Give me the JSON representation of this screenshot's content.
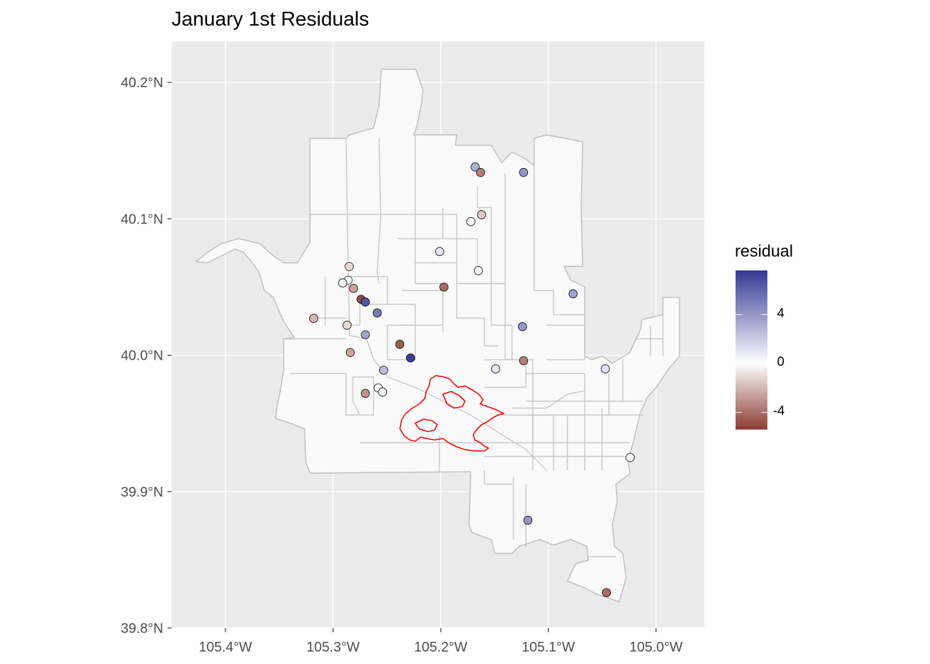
{
  "title": "January 1st Residuals",
  "axes": {
    "x_ticks": [
      {
        "value": -105.4,
        "label": "105.4°W"
      },
      {
        "value": -105.3,
        "label": "105.3°W"
      },
      {
        "value": -105.2,
        "label": "105.2°W"
      },
      {
        "value": -105.1,
        "label": "105.1°W"
      },
      {
        "value": -105.0,
        "label": "105.0°W"
      }
    ],
    "y_ticks": [
      {
        "value": 39.8,
        "label": "39.8°N"
      },
      {
        "value": 39.9,
        "label": "39.9°N"
      },
      {
        "value": 40.0,
        "label": "40.0°N"
      },
      {
        "value": 40.1,
        "label": "40.1°N"
      },
      {
        "value": 40.2,
        "label": "40.2°N"
      }
    ],
    "xlim": [
      -105.45,
      -104.955
    ],
    "ylim": [
      39.8,
      40.23
    ]
  },
  "legend": {
    "title": "residual",
    "breaks": [
      {
        "value": 4,
        "label": "4"
      },
      {
        "value": 0,
        "label": "0"
      },
      {
        "value": -4,
        "label": "-4"
      }
    ],
    "range": [
      -5.4,
      7.6
    ],
    "colors": {
      "low": "#8B3A32",
      "mid": "#FFFFFF",
      "high": "#323A94"
    }
  },
  "colors": {
    "panel": "#EBEBEB",
    "grid": "#FFFFFF",
    "region_fill": "#FAFAFA",
    "region_stroke": "#BFBFBF",
    "fire_perimeter": "#FF0000"
  },
  "chart_data": {
    "type": "scatter",
    "title": "January 1st Residuals",
    "xlabel": "",
    "ylabel": "",
    "color_scale": "residual",
    "points": [
      {
        "lon": -105.168,
        "lat": 40.138,
        "residual": 3.0
      },
      {
        "lon": -105.163,
        "lat": 40.134,
        "residual": -3.5
      },
      {
        "lon": -105.123,
        "lat": 40.134,
        "residual": 4.0
      },
      {
        "lon": -105.172,
        "lat": 40.098,
        "residual": 0.3
      },
      {
        "lon": -105.162,
        "lat": 40.103,
        "residual": -1.5
      },
      {
        "lon": -105.201,
        "lat": 40.076,
        "residual": 1.0
      },
      {
        "lon": -105.165,
        "lat": 40.062,
        "residual": 0.2
      },
      {
        "lon": -105.285,
        "lat": 40.065,
        "residual": -1.0
      },
      {
        "lon": -105.286,
        "lat": 40.055,
        "residual": 0.1
      },
      {
        "lon": -105.291,
        "lat": 40.053,
        "residual": 0.3
      },
      {
        "lon": -105.281,
        "lat": 40.049,
        "residual": -2.5
      },
      {
        "lon": -105.197,
        "lat": 40.05,
        "residual": -4.0
      },
      {
        "lon": -105.077,
        "lat": 40.045,
        "residual": 3.5
      },
      {
        "lon": -105.274,
        "lat": 40.041,
        "residual": -5.0
      },
      {
        "lon": -105.27,
        "lat": 40.039,
        "residual": 6.5
      },
      {
        "lon": -105.259,
        "lat": 40.031,
        "residual": 5.0
      },
      {
        "lon": -105.318,
        "lat": 40.027,
        "residual": -2.0
      },
      {
        "lon": -105.287,
        "lat": 40.022,
        "residual": -1.0
      },
      {
        "lon": -105.124,
        "lat": 40.021,
        "residual": 4.0
      },
      {
        "lon": -105.27,
        "lat": 40.015,
        "residual": 3.5
      },
      {
        "lon": -105.238,
        "lat": 40.008,
        "residual": -4.5
      },
      {
        "lon": -105.284,
        "lat": 40.002,
        "residual": -2.5
      },
      {
        "lon": -105.228,
        "lat": 39.998,
        "residual": 7.5
      },
      {
        "lon": -105.123,
        "lat": 39.996,
        "residual": -3.5
      },
      {
        "lon": -105.149,
        "lat": 39.99,
        "residual": 1.0
      },
      {
        "lon": -105.047,
        "lat": 39.99,
        "residual": 1.0
      },
      {
        "lon": -105.253,
        "lat": 39.989,
        "residual": 2.5
      },
      {
        "lon": -105.258,
        "lat": 39.976,
        "residual": 0.2
      },
      {
        "lon": -105.254,
        "lat": 39.973,
        "residual": 0.1
      },
      {
        "lon": -105.27,
        "lat": 39.972,
        "residual": -3.0
      },
      {
        "lon": -105.024,
        "lat": 39.925,
        "residual": 0.1
      },
      {
        "lon": -105.119,
        "lat": 39.879,
        "residual": 4.0
      },
      {
        "lon": -105.046,
        "lat": 39.826,
        "residual": -4.0
      }
    ]
  }
}
